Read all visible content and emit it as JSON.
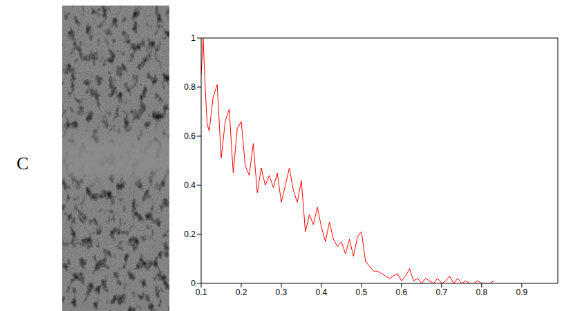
{
  "panel": "C",
  "chart_data": {
    "type": "line",
    "color": "#ff0000",
    "grid": false,
    "marker": "none",
    "line_style": "solid",
    "x": [
      0.1,
      0.105,
      0.11,
      0.115,
      0.12,
      0.13,
      0.14,
      0.15,
      0.16,
      0.17,
      0.18,
      0.19,
      0.2,
      0.21,
      0.22,
      0.23,
      0.24,
      0.25,
      0.26,
      0.27,
      0.28,
      0.29,
      0.3,
      0.31,
      0.32,
      0.33,
      0.34,
      0.35,
      0.36,
      0.37,
      0.38,
      0.39,
      0.4,
      0.41,
      0.42,
      0.43,
      0.44,
      0.45,
      0.46,
      0.47,
      0.48,
      0.49,
      0.5,
      0.51,
      0.52,
      0.53,
      0.54,
      0.55,
      0.56,
      0.57,
      0.58,
      0.59,
      0.6,
      0.61,
      0.62,
      0.63,
      0.64,
      0.65,
      0.66,
      0.67,
      0.68,
      0.69,
      0.7,
      0.71,
      0.72,
      0.73,
      0.74,
      0.75,
      0.76,
      0.77,
      0.78,
      0.79,
      0.8,
      0.81,
      0.82,
      0.83
    ],
    "values": [
      0.85,
      1.0,
      0.8,
      0.65,
      0.62,
      0.76,
      0.81,
      0.51,
      0.66,
      0.71,
      0.45,
      0.63,
      0.66,
      0.48,
      0.44,
      0.57,
      0.37,
      0.47,
      0.4,
      0.44,
      0.39,
      0.45,
      0.33,
      0.4,
      0.47,
      0.38,
      0.33,
      0.42,
      0.21,
      0.28,
      0.24,
      0.31,
      0.23,
      0.17,
      0.25,
      0.18,
      0.15,
      0.17,
      0.12,
      0.18,
      0.11,
      0.19,
      0.21,
      0.09,
      0.07,
      0.05,
      0.05,
      0.04,
      0.03,
      0.02,
      0.03,
      0.04,
      0.01,
      0.03,
      0.06,
      0.01,
      0.02,
      0.0,
      0.02,
      0.01,
      0.0,
      0.02,
      0.0,
      0.01,
      0.03,
      0.0,
      0.02,
      0.0,
      0.01,
      0.0,
      0.0,
      0.01,
      0.0,
      0.0,
      0.0,
      0.01
    ],
    "xlim": [
      0.1,
      0.99
    ],
    "xticks": [
      0.1,
      0.2,
      0.3,
      0.4,
      0.5,
      0.6,
      0.7,
      0.8,
      0.9
    ],
    "ylim": [
      0,
      1
    ],
    "yticks": [
      0,
      0.2,
      0.4,
      0.6,
      0.8,
      1
    ]
  }
}
